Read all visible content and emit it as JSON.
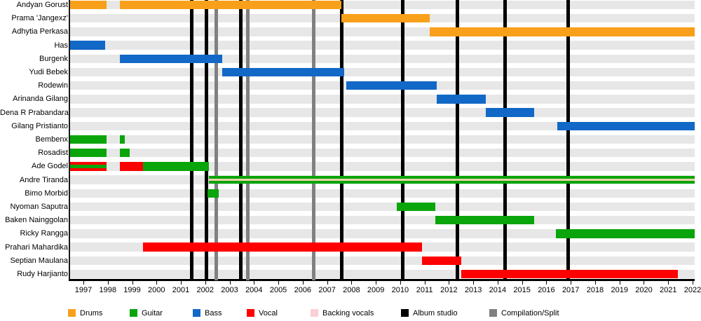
{
  "chart_data": {
    "type": "timeline",
    "description": "Band members timeline (gantt-style) with roles by color and release markers as vertical lines",
    "x_axis": {
      "start": 1997,
      "end": 2022,
      "ticks": [
        "1997",
        "1998",
        "1999",
        "2000",
        "2001",
        "2002",
        "2003",
        "2004",
        "2005",
        "2006",
        "2007",
        "2008",
        "2009",
        "2010",
        "2011",
        "2012",
        "2013",
        "2014",
        "2015",
        "2016",
        "2017",
        "2018",
        "2019",
        "2020",
        "2021",
        "2022"
      ]
    },
    "plot_range": {
      "start": 1996.45,
      "end": 2022.1
    },
    "colors": {
      "drums": "#F9A01B",
      "guitar": "#0AA50A",
      "bass": "#1268C6",
      "vocal": "#FF0000",
      "backing_vocals": "#FBD0D5",
      "backing_stripe": "#F0D2AC",
      "album_studio": "#000000",
      "compilation_split": "#808080",
      "row_band": "#E7E7E7"
    },
    "members": [
      {
        "name": "Andyan Gorust",
        "segments": [
          {
            "role": "drums",
            "start": 1996.45,
            "end": 1997.95
          },
          {
            "role": "drums",
            "start": 1998.5,
            "end": 2007.6
          }
        ]
      },
      {
        "name": "Prama 'Jangexz'",
        "segments": [
          {
            "role": "drums",
            "start": 2007.6,
            "end": 2011.2
          }
        ]
      },
      {
        "name": "Adhytia Perkasa",
        "segments": [
          {
            "role": "drums",
            "start": 2011.2,
            "end": 2022.1
          }
        ]
      },
      {
        "name": "Has",
        "segments": [
          {
            "role": "bass",
            "start": 1996.45,
            "end": 1997.9
          }
        ]
      },
      {
        "name": "Burgenk",
        "segments": [
          {
            "role": "bass",
            "start": 1998.5,
            "end": 2002.7
          }
        ]
      },
      {
        "name": "Yudi Bebek",
        "segments": [
          {
            "role": "bass",
            "start": 2002.7,
            "end": 2007.7
          }
        ]
      },
      {
        "name": "Rodewin",
        "segments": [
          {
            "role": "bass",
            "start": 2007.8,
            "end": 2011.5
          }
        ]
      },
      {
        "name": "Arinanda Gilang",
        "segments": [
          {
            "role": "bass",
            "start": 2011.5,
            "end": 2013.5
          }
        ]
      },
      {
        "name": "Dena R Prabandara",
        "segments": [
          {
            "role": "bass",
            "start": 2013.5,
            "end": 2015.5
          }
        ]
      },
      {
        "name": "Gilang Pristianto",
        "segments": [
          {
            "role": "bass",
            "start": 2016.45,
            "end": 2022.1
          }
        ]
      },
      {
        "name": "Bembenx",
        "segments": [
          {
            "role": "guitar",
            "start": 1996.45,
            "end": 1997.95
          },
          {
            "role": "guitar",
            "start": 1998.5,
            "end": 1998.7
          }
        ]
      },
      {
        "name": "Rosadist",
        "segments": [
          {
            "role": "guitar",
            "start": 1996.45,
            "end": 1997.95
          },
          {
            "role": "guitar",
            "start": 1998.5,
            "end": 1998.9
          }
        ]
      },
      {
        "name": "Ade Godel",
        "segments": [
          {
            "style": "vocal_guitar",
            "start": 1996.45,
            "end": 1997.95
          },
          {
            "role": "vocal",
            "start": 1998.5,
            "end": 1999.45
          },
          {
            "role": "guitar",
            "start": 1999.45,
            "end": 2002.15
          }
        ]
      },
      {
        "name": "Andre Tiranda",
        "segments": [
          {
            "style": "guitar_backing",
            "start": 2002.15,
            "end": 2022.1
          }
        ]
      },
      {
        "name": "Bimo Morbid",
        "segments": [
          {
            "role": "guitar",
            "start": 2002.1,
            "end": 2002.55
          }
        ]
      },
      {
        "name": "Nyoman Saputra",
        "segments": [
          {
            "role": "guitar",
            "start": 2009.85,
            "end": 2011.45
          }
        ]
      },
      {
        "name": "Baken Nainggolan",
        "segments": [
          {
            "role": "guitar",
            "start": 2011.45,
            "end": 2015.5
          }
        ]
      },
      {
        "name": "Ricky Rangga",
        "segments": [
          {
            "role": "guitar",
            "start": 2016.4,
            "end": 2022.1
          }
        ]
      },
      {
        "name": "Prahari Mahardika",
        "segments": [
          {
            "role": "vocal",
            "start": 1999.45,
            "end": 2010.9
          }
        ]
      },
      {
        "name": "Septian Maulana",
        "segments": [
          {
            "role": "vocal",
            "start": 2010.9,
            "end": 2012.5
          }
        ]
      },
      {
        "name": "Rudy Harjianto",
        "segments": [
          {
            "role": "vocal",
            "start": 2012.5,
            "end": 2021.4
          }
        ]
      }
    ],
    "events": {
      "album_studio": [
        2001.45,
        2002.05,
        2003.45,
        2007.6,
        2010.1,
        2012.35,
        2014.3,
        2016.9
      ],
      "compilation_split": [
        2002.45,
        2003.75,
        2006.45
      ]
    },
    "legend": {
      "items": [
        {
          "label": "Drums",
          "color_key": "drums"
        },
        {
          "label": "Guitar",
          "color_key": "guitar"
        },
        {
          "label": "Bass",
          "color_key": "bass"
        },
        {
          "label": "Vocal",
          "color_key": "vocal"
        },
        {
          "label": "Backing vocals",
          "color_key": "backing_vocals"
        },
        {
          "label": "Album studio",
          "color_key": "album_studio"
        },
        {
          "label": "Compilation/Split",
          "color_key": "compilation_split"
        }
      ]
    }
  }
}
